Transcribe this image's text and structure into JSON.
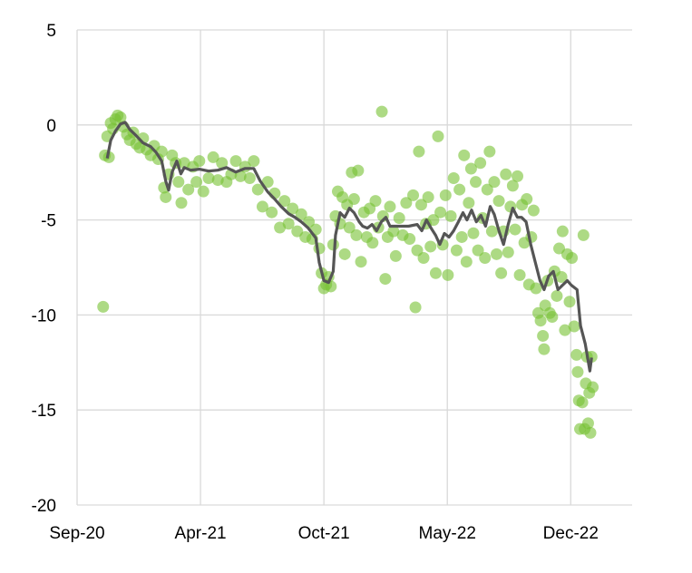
{
  "chart_data": {
    "type": "scatter",
    "title": "",
    "xlabel": "",
    "ylabel": "",
    "x_unit": "days since Sep-20",
    "xlim": [
      0,
      958
    ],
    "ylim": [
      -20,
      5
    ],
    "grid": true,
    "legend": "none",
    "x_ticks": [
      {
        "value": 0,
        "label": "Sep-20"
      },
      {
        "value": 213,
        "label": "Apr-21"
      },
      {
        "value": 426,
        "label": "Oct-21"
      },
      {
        "value": 639,
        "label": "May-22"
      },
      {
        "value": 852,
        "label": "Dec-22"
      }
    ],
    "y_ticks": [
      {
        "value": 5,
        "label": "5"
      },
      {
        "value": 0,
        "label": "0"
      },
      {
        "value": -5,
        "label": "-5"
      },
      {
        "value": -10,
        "label": "-10"
      },
      {
        "value": -15,
        "label": "-15"
      },
      {
        "value": -20,
        "label": "-20"
      }
    ],
    "colors": {
      "scatter": "#76c132",
      "line": "#555555",
      "grid": "#d9d9d9"
    },
    "series": [
      {
        "name": "daily",
        "type": "scatter",
        "points": [
          [
            45,
            -9.57
          ],
          [
            48,
            -1.6
          ],
          [
            52,
            -0.6
          ],
          [
            55,
            -1.7
          ],
          [
            58,
            0.1
          ],
          [
            62,
            -0.2
          ],
          [
            66,
            0.3
          ],
          [
            70,
            0.5
          ],
          [
            75,
            0.4
          ],
          [
            80,
            -0.1
          ],
          [
            86,
            -0.5
          ],
          [
            91,
            -0.8
          ],
          [
            97,
            -0.4
          ],
          [
            102,
            -1.0
          ],
          [
            108,
            -1.2
          ],
          [
            114,
            -0.7
          ],
          [
            120,
            -1.3
          ],
          [
            127,
            -1.6
          ],
          [
            133,
            -1.1
          ],
          [
            140,
            -1.8
          ],
          [
            146,
            -1.4
          ],
          [
            150,
            -3.3
          ],
          [
            153,
            -3.8
          ],
          [
            158,
            -2.6
          ],
          [
            164,
            -1.6
          ],
          [
            170,
            -2.0
          ],
          [
            175,
            -3.0
          ],
          [
            180,
            -4.1
          ],
          [
            185,
            -2.0
          ],
          [
            192,
            -3.4
          ],
          [
            200,
            -2.2
          ],
          [
            206,
            -3.0
          ],
          [
            211,
            -1.9
          ],
          [
            218,
            -3.5
          ],
          [
            227,
            -2.8
          ],
          [
            235,
            -1.7
          ],
          [
            243,
            -2.9
          ],
          [
            250,
            -2.0
          ],
          [
            258,
            -3.0
          ],
          [
            266,
            -2.6
          ],
          [
            274,
            -1.9
          ],
          [
            282,
            -2.7
          ],
          [
            290,
            -2.2
          ],
          [
            298,
            -2.8
          ],
          [
            305,
            -1.9
          ],
          [
            312,
            -3.4
          ],
          [
            320,
            -4.3
          ],
          [
            329,
            -3.0
          ],
          [
            336,
            -4.6
          ],
          [
            341,
            -3.6
          ],
          [
            350,
            -5.4
          ],
          [
            358,
            -4.0
          ],
          [
            365,
            -5.2
          ],
          [
            372,
            -4.4
          ],
          [
            380,
            -5.6
          ],
          [
            387,
            -4.7
          ],
          [
            394,
            -5.9
          ],
          [
            400,
            -5.1
          ],
          [
            406,
            -6.0
          ],
          [
            412,
            -5.5
          ],
          [
            418,
            -6.5
          ],
          [
            422,
            -7.8
          ],
          [
            426,
            -8.6
          ],
          [
            430,
            -8.4
          ],
          [
            434,
            -8.0
          ],
          [
            438,
            -8.5
          ],
          [
            442,
            -6.3
          ],
          [
            446,
            -4.8
          ],
          [
            450,
            -3.5
          ],
          [
            454,
            -5.2
          ],
          [
            458,
            -3.8
          ],
          [
            462,
            -6.8
          ],
          [
            466,
            -4.2
          ],
          [
            470,
            -5.4
          ],
          [
            474,
            -2.5
          ],
          [
            478,
            -3.9
          ],
          [
            482,
            -5.8
          ],
          [
            485,
            -2.4
          ],
          [
            490,
            -7.2
          ],
          [
            495,
            -4.6
          ],
          [
            500,
            -5.9
          ],
          [
            505,
            -4.4
          ],
          [
            510,
            -6.2
          ],
          [
            515,
            -4.0
          ],
          [
            520,
            -5.4
          ],
          [
            526,
            0.7
          ],
          [
            528,
            -4.8
          ],
          [
            532,
            -8.1
          ],
          [
            536,
            -5.9
          ],
          [
            540,
            -4.3
          ],
          [
            546,
            -5.6
          ],
          [
            550,
            -6.9
          ],
          [
            556,
            -4.9
          ],
          [
            562,
            -5.8
          ],
          [
            568,
            -4.1
          ],
          [
            574,
            -6.0
          ],
          [
            580,
            -3.7
          ],
          [
            584,
            -9.6
          ],
          [
            587,
            -6.6
          ],
          [
            590,
            -1.4
          ],
          [
            594,
            -4.2
          ],
          [
            598,
            -7.0
          ],
          [
            602,
            -5.2
          ],
          [
            606,
            -3.8
          ],
          [
            610,
            -6.4
          ],
          [
            615,
            -5.0
          ],
          [
            619,
            -7.8
          ],
          [
            623,
            -0.6
          ],
          [
            627,
            -4.6
          ],
          [
            631,
            -6.3
          ],
          [
            636,
            -3.7
          ],
          [
            640,
            -7.9
          ],
          [
            645,
            -4.8
          ],
          [
            650,
            -2.8
          ],
          [
            655,
            -6.6
          ],
          [
            660,
            -3.4
          ],
          [
            664,
            -5.9
          ],
          [
            668,
            -1.6
          ],
          [
            672,
            -7.2
          ],
          [
            676,
            -4.1
          ],
          [
            680,
            -2.3
          ],
          [
            684,
            -5.7
          ],
          [
            688,
            -3.0
          ],
          [
            692,
            -6.6
          ],
          [
            696,
            -2.0
          ],
          [
            700,
            -4.9
          ],
          [
            704,
            -7.0
          ],
          [
            708,
            -3.4
          ],
          [
            712,
            -1.4
          ],
          [
            716,
            -5.6
          ],
          [
            720,
            -3.0
          ],
          [
            724,
            -6.8
          ],
          [
            728,
            -4.0
          ],
          [
            732,
            -7.8
          ],
          [
            736,
            -5.6
          ],
          [
            740,
            -2.6
          ],
          [
            744,
            -6.7
          ],
          [
            748,
            -4.3
          ],
          [
            752,
            -3.2
          ],
          [
            756,
            -5.5
          ],
          [
            760,
            -2.7
          ],
          [
            764,
            -7.9
          ],
          [
            768,
            -4.2
          ],
          [
            772,
            -6.2
          ],
          [
            776,
            -3.9
          ],
          [
            780,
            -8.4
          ],
          [
            784,
            -5.9
          ],
          [
            788,
            -4.5
          ],
          [
            792,
            -8.6
          ],
          [
            796,
            -9.9
          ],
          [
            800,
            -10.3
          ],
          [
            804,
            -11.1
          ],
          [
            806,
            -11.8
          ],
          [
            808,
            -9.5
          ],
          [
            812,
            -8.2
          ],
          [
            816,
            -9.9
          ],
          [
            820,
            -10.1
          ],
          [
            824,
            -7.7
          ],
          [
            828,
            -9.0
          ],
          [
            832,
            -6.5
          ],
          [
            836,
            -8.0
          ],
          [
            838,
            -5.6
          ],
          [
            842,
            -10.8
          ],
          [
            846,
            -6.8
          ],
          [
            850,
            -9.3
          ],
          [
            854,
            -7.0
          ],
          [
            858,
            -10.6
          ],
          [
            862,
            -12.1
          ],
          [
            864,
            -13.0
          ],
          [
            866,
            -14.5
          ],
          [
            868,
            -16.0
          ],
          [
            872,
            -14.6
          ],
          [
            874,
            -5.8
          ],
          [
            876,
            -16.0
          ],
          [
            878,
            -13.6
          ],
          [
            880,
            -12.2
          ],
          [
            882,
            -15.7
          ],
          [
            884,
            -14.1
          ],
          [
            886,
            -16.2
          ],
          [
            888,
            -12.2
          ],
          [
            890,
            -13.8
          ]
        ]
      },
      {
        "name": "moving average",
        "type": "line",
        "points": [
          [
            52,
            -1.76
          ],
          [
            58,
            -0.81
          ],
          [
            66,
            -0.33
          ],
          [
            75,
            0.05
          ],
          [
            83,
            0.14
          ],
          [
            91,
            -0.24
          ],
          [
            102,
            -0.57
          ],
          [
            114,
            -0.95
          ],
          [
            127,
            -1.14
          ],
          [
            136,
            -1.43
          ],
          [
            146,
            -1.9
          ],
          [
            153,
            -2.95
          ],
          [
            158,
            -3.43
          ],
          [
            164,
            -2.48
          ],
          [
            172,
            -1.9
          ],
          [
            179,
            -2.57
          ],
          [
            185,
            -2.24
          ],
          [
            196,
            -2.38
          ],
          [
            211,
            -2.33
          ],
          [
            227,
            -2.43
          ],
          [
            243,
            -2.38
          ],
          [
            258,
            -2.24
          ],
          [
            274,
            -2.48
          ],
          [
            290,
            -2.29
          ],
          [
            305,
            -2.29
          ],
          [
            316,
            -2.95
          ],
          [
            329,
            -3.52
          ],
          [
            341,
            -3.9
          ],
          [
            352,
            -4.29
          ],
          [
            365,
            -4.67
          ],
          [
            376,
            -4.86
          ],
          [
            387,
            -5.1
          ],
          [
            399,
            -5.43
          ],
          [
            412,
            -5.95
          ],
          [
            418,
            -7.24
          ],
          [
            426,
            -8.19
          ],
          [
            434,
            -8.29
          ],
          [
            442,
            -7.71
          ],
          [
            446,
            -5.81
          ],
          [
            454,
            -4.62
          ],
          [
            462,
            -4.86
          ],
          [
            470,
            -4.38
          ],
          [
            478,
            -4.62
          ],
          [
            487,
            -5.1
          ],
          [
            493,
            -5.33
          ],
          [
            501,
            -5.43
          ],
          [
            509,
            -5.24
          ],
          [
            517,
            -5.57
          ],
          [
            525,
            -5.1
          ],
          [
            533,
            -4.86
          ],
          [
            540,
            -5.33
          ],
          [
            556,
            -5.33
          ],
          [
            572,
            -5.33
          ],
          [
            587,
            -5.24
          ],
          [
            595,
            -5.57
          ],
          [
            603,
            -5.0
          ],
          [
            611,
            -5.43
          ],
          [
            619,
            -5.81
          ],
          [
            626,
            -6.29
          ],
          [
            634,
            -5.71
          ],
          [
            642,
            -5.9
          ],
          [
            650,
            -5.57
          ],
          [
            658,
            -5.1
          ],
          [
            666,
            -4.62
          ],
          [
            673,
            -5.0
          ],
          [
            681,
            -4.48
          ],
          [
            689,
            -5.1
          ],
          [
            697,
            -4.76
          ],
          [
            705,
            -5.33
          ],
          [
            713,
            -4.29
          ],
          [
            720,
            -4.71
          ],
          [
            728,
            -5.57
          ],
          [
            736,
            -6.29
          ],
          [
            744,
            -5.24
          ],
          [
            752,
            -4.38
          ],
          [
            760,
            -4.86
          ],
          [
            767,
            -4.86
          ],
          [
            775,
            -5.1
          ],
          [
            783,
            -6.29
          ],
          [
            791,
            -7.24
          ],
          [
            799,
            -8.19
          ],
          [
            806,
            -8.67
          ],
          [
            814,
            -7.95
          ],
          [
            822,
            -7.71
          ],
          [
            830,
            -8.67
          ],
          [
            838,
            -8.43
          ],
          [
            846,
            -8.19
          ],
          [
            853,
            -8.43
          ],
          [
            863,
            -8.67
          ],
          [
            869,
            -10.57
          ],
          [
            877,
            -11.52
          ],
          [
            885,
            -12.95
          ],
          [
            888,
            -12.24
          ]
        ]
      }
    ]
  }
}
